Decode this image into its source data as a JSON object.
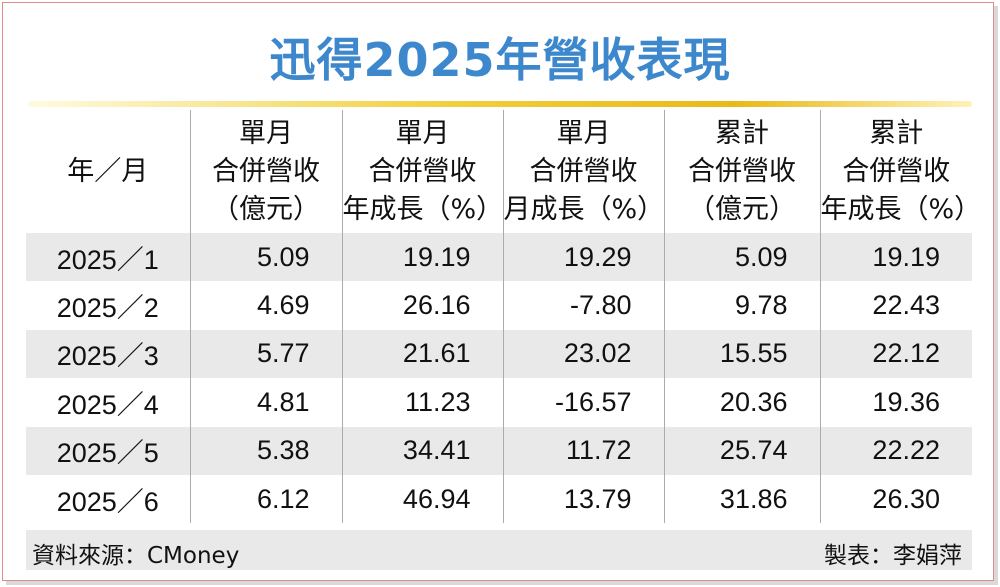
{
  "title": "迅得2025年營收表現",
  "columns": [
    {
      "lines": [
        "年／月"
      ]
    },
    {
      "lines": [
        "單月",
        "合併營收",
        "（億元）"
      ]
    },
    {
      "lines": [
        "單月",
        "合併營收",
        "年成長（%）"
      ]
    },
    {
      "lines": [
        "單月",
        "合併營收",
        "月成長（%）"
      ]
    },
    {
      "lines": [
        "累計",
        "合併營收",
        "（億元）"
      ]
    },
    {
      "lines": [
        "累計",
        "合併營收",
        "年成長（%）"
      ]
    }
  ],
  "rows": [
    [
      "2025／1",
      "5.09",
      "19.19",
      "19.29",
      "5.09",
      "19.19"
    ],
    [
      "2025／2",
      "4.69",
      "26.16",
      "-7.80",
      "9.78",
      "22.43"
    ],
    [
      "2025／3",
      "5.77",
      "21.61",
      "23.02",
      "15.55",
      "22.12"
    ],
    [
      "2025／4",
      "4.81",
      "11.23",
      "-16.57",
      "20.36",
      "19.36"
    ],
    [
      "2025／5",
      "5.38",
      "34.41",
      "11.72",
      "25.74",
      "22.22"
    ],
    [
      "2025／6",
      "6.12",
      "46.94",
      "13.79",
      "31.86",
      "26.30"
    ]
  ],
  "footer": {
    "source": "資料來源：CMoney",
    "maker": "製表：李娟萍"
  },
  "colors": {
    "title": "#3d88cc",
    "gold_bar": "#e8b918",
    "stripe": "#e9e9e9",
    "border": "#e08a8a"
  }
}
